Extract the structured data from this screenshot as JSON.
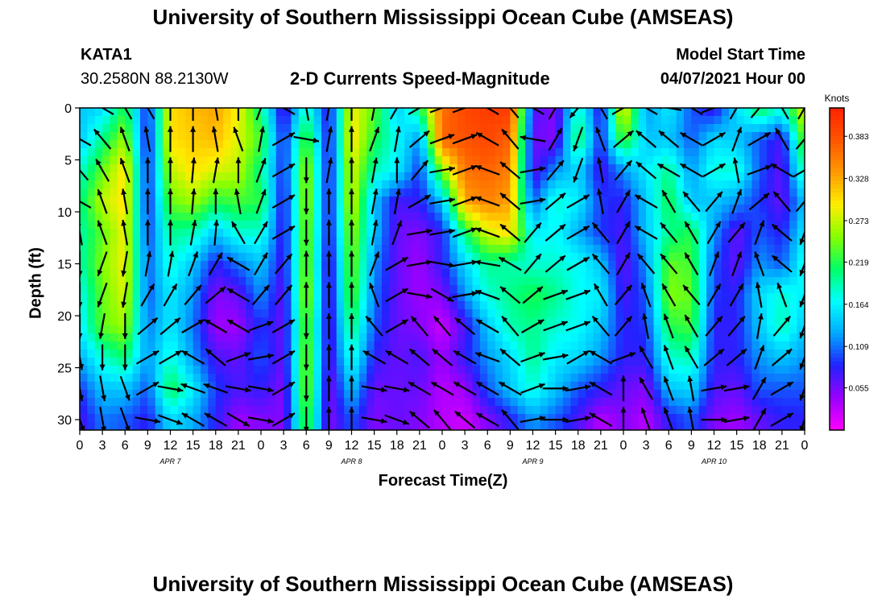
{
  "header": {
    "title_top": "University of Southern Mississippi Ocean Cube (AMSEAS)",
    "title_bottom": "University of Southern Mississippi Ocean Cube (AMSEAS)",
    "station": "KATA1",
    "coords": "30.2580N  88.2130W",
    "subtitle": "2-D Currents Speed-Magnitude",
    "model_label": "Model Start Time",
    "model_time": "04/07/2021 Hour 00"
  },
  "colors": {
    "scale": [
      "#ff00ff",
      "#9900ff",
      "#2222ff",
      "#00aaff",
      "#00ffff",
      "#00ff66",
      "#88ff00",
      "#ffee00",
      "#ff9900",
      "#ff5500",
      "#ff2200"
    ]
  },
  "chart_data": {
    "type": "heatmap",
    "xlabel": "Forecast Time(Z)",
    "ylabel": "Depth (ft)",
    "x_ticks": [
      "0",
      "3",
      "6",
      "9",
      "12",
      "15",
      "18",
      "21",
      "0",
      "3",
      "6",
      "9",
      "12",
      "15",
      "18",
      "21",
      "0",
      "3",
      "6",
      "9",
      "12",
      "15",
      "18",
      "21",
      "0",
      "3",
      "6",
      "9",
      "12",
      "15",
      "18",
      "21",
      "0"
    ],
    "date_labels": [
      {
        "text": "APR 7",
        "hour": 12
      },
      {
        "text": "APR 8",
        "hour": 36
      },
      {
        "text": "APR 9",
        "hour": 60
      },
      {
        "text": "APR 10",
        "hour": 84
      }
    ],
    "xlim": [
      0,
      96
    ],
    "y_ticks": [
      "0",
      "5",
      "10",
      "15",
      "20",
      "25",
      "30"
    ],
    "ylim": [
      0,
      31
    ],
    "colorbar": {
      "unit": "Knots",
      "ticks": [
        "0.383",
        "0.328",
        "0.273",
        "0.219",
        "0.164",
        "0.109",
        "0.055"
      ],
      "range": [
        0,
        0.42
      ]
    },
    "hours": [
      0,
      3,
      6,
      9,
      12,
      15,
      18,
      21,
      24,
      27,
      30,
      33,
      36,
      39,
      42,
      45,
      48,
      51,
      54,
      57,
      60,
      63,
      66,
      69,
      72,
      75,
      78,
      81,
      84,
      87,
      90,
      93,
      96
    ],
    "depths": [
      0,
      3,
      6,
      9,
      12,
      15,
      18,
      21,
      24,
      27,
      30
    ],
    "speed": [
      [
        0.14,
        0.15,
        0.22,
        0.08,
        0.3,
        0.32,
        0.33,
        0.29,
        0.2,
        0.06,
        0.19,
        0.07,
        0.29,
        0.24,
        0.14,
        0.21,
        0.36,
        0.39,
        0.4,
        0.4,
        0.07,
        0.05,
        0.19,
        0.07,
        0.3,
        0.12,
        0.16,
        0.1,
        0.07,
        0.15,
        0.22,
        0.18,
        0.29
      ],
      [
        0.14,
        0.2,
        0.26,
        0.07,
        0.3,
        0.31,
        0.32,
        0.28,
        0.23,
        0.08,
        0.24,
        0.07,
        0.3,
        0.22,
        0.17,
        0.12,
        0.37,
        0.38,
        0.39,
        0.37,
        0.06,
        0.05,
        0.22,
        0.08,
        0.24,
        0.14,
        0.14,
        0.1,
        0.15,
        0.14,
        0.1,
        0.07,
        0.25
      ],
      [
        0.18,
        0.24,
        0.3,
        0.08,
        0.27,
        0.3,
        0.28,
        0.27,
        0.2,
        0.08,
        0.27,
        0.07,
        0.28,
        0.19,
        0.16,
        0.09,
        0.25,
        0.36,
        0.37,
        0.35,
        0.06,
        0.12,
        0.15,
        0.07,
        0.12,
        0.16,
        0.2,
        0.12,
        0.18,
        0.18,
        0.1,
        0.06,
        0.2
      ],
      [
        0.2,
        0.27,
        0.3,
        0.08,
        0.24,
        0.26,
        0.22,
        0.23,
        0.22,
        0.07,
        0.27,
        0.07,
        0.28,
        0.14,
        0.07,
        0.08,
        0.14,
        0.33,
        0.35,
        0.33,
        0.1,
        0.18,
        0.16,
        0.09,
        0.08,
        0.14,
        0.22,
        0.14,
        0.14,
        0.12,
        0.09,
        0.06,
        0.14
      ],
      [
        0.19,
        0.24,
        0.29,
        0.09,
        0.2,
        0.19,
        0.14,
        0.18,
        0.18,
        0.07,
        0.26,
        0.07,
        0.26,
        0.14,
        0.06,
        0.05,
        0.08,
        0.21,
        0.28,
        0.3,
        0.16,
        0.17,
        0.13,
        0.09,
        0.07,
        0.14,
        0.2,
        0.22,
        0.12,
        0.06,
        0.1,
        0.08,
        0.16
      ],
      [
        0.19,
        0.25,
        0.29,
        0.1,
        0.18,
        0.14,
        0.08,
        0.11,
        0.14,
        0.07,
        0.26,
        0.06,
        0.25,
        0.12,
        0.06,
        0.04,
        0.08,
        0.15,
        0.2,
        0.19,
        0.18,
        0.18,
        0.17,
        0.14,
        0.06,
        0.12,
        0.24,
        0.23,
        0.1,
        0.06,
        0.12,
        0.1,
        0.18
      ],
      [
        0.17,
        0.24,
        0.28,
        0.1,
        0.16,
        0.12,
        0.05,
        0.06,
        0.12,
        0.06,
        0.27,
        0.06,
        0.24,
        0.11,
        0.06,
        0.04,
        0.05,
        0.12,
        0.18,
        0.2,
        0.22,
        0.2,
        0.17,
        0.16,
        0.07,
        0.1,
        0.25,
        0.24,
        0.09,
        0.08,
        0.15,
        0.18,
        0.16
      ],
      [
        0.16,
        0.24,
        0.26,
        0.11,
        0.16,
        0.11,
        0.04,
        0.04,
        0.09,
        0.06,
        0.25,
        0.06,
        0.21,
        0.1,
        0.06,
        0.05,
        0.02,
        0.07,
        0.14,
        0.19,
        0.2,
        0.18,
        0.17,
        0.14,
        0.08,
        0.09,
        0.22,
        0.23,
        0.08,
        0.08,
        0.14,
        0.19,
        0.14
      ],
      [
        0.13,
        0.18,
        0.21,
        0.12,
        0.18,
        0.12,
        0.07,
        0.06,
        0.1,
        0.06,
        0.26,
        0.06,
        0.18,
        0.08,
        0.06,
        0.07,
        0.04,
        0.08,
        0.12,
        0.15,
        0.2,
        0.16,
        0.15,
        0.12,
        0.08,
        0.08,
        0.18,
        0.19,
        0.08,
        0.08,
        0.12,
        0.14,
        0.12
      ],
      [
        0.09,
        0.14,
        0.14,
        0.1,
        0.22,
        0.16,
        0.09,
        0.07,
        0.08,
        0.05,
        0.26,
        0.05,
        0.14,
        0.06,
        0.06,
        0.06,
        0.03,
        0.04,
        0.1,
        0.14,
        0.18,
        0.14,
        0.1,
        0.08,
        0.06,
        0.05,
        0.14,
        0.15,
        0.07,
        0.06,
        0.1,
        0.1,
        0.1
      ],
      [
        0.07,
        0.11,
        0.1,
        0.08,
        0.15,
        0.13,
        0.08,
        0.04,
        0.05,
        0.05,
        0.24,
        0.05,
        0.1,
        0.05,
        0.06,
        0.05,
        0.03,
        0.02,
        0.05,
        0.08,
        0.12,
        0.1,
        0.07,
        0.03,
        0.05,
        0.03,
        0.08,
        0.1,
        0.05,
        0.04,
        0.06,
        0.08,
        0.08
      ]
    ],
    "direction_deg": [
      [
        30,
        300,
        330,
        330,
        0,
        0,
        350,
        0,
        20,
        300,
        350,
        10,
        0,
        10,
        30,
        60,
        70,
        70,
        300,
        320,
        300,
        30,
        220,
        330,
        60,
        300,
        280,
        300,
        70,
        30,
        40,
        330,
        30
      ],
      [
        300,
        320,
        340,
        350,
        0,
        0,
        350,
        340,
        10,
        60,
        100,
        10,
        0,
        20,
        10,
        50,
        70,
        70,
        300,
        320,
        280,
        30,
        200,
        340,
        50,
        310,
        310,
        300,
        60,
        20,
        60,
        330,
        40
      ],
      [
        320,
        330,
        340,
        0,
        0,
        5,
        10,
        0,
        20,
        60,
        180,
        10,
        0,
        10,
        0,
        40,
        80,
        70,
        290,
        310,
        80,
        40,
        200,
        350,
        40,
        310,
        300,
        300,
        60,
        350,
        70,
        300,
        60
      ],
      [
        300,
        340,
        350,
        0,
        0,
        5,
        0,
        350,
        20,
        60,
        180,
        0,
        0,
        10,
        10,
        60,
        80,
        70,
        290,
        310,
        80,
        50,
        60,
        350,
        30,
        300,
        330,
        320,
        40,
        20,
        50,
        320,
        40
      ],
      [
        350,
        340,
        350,
        0,
        0,
        10,
        5,
        330,
        30,
        60,
        180,
        0,
        0,
        10,
        20,
        80,
        80,
        70,
        290,
        310,
        40,
        50,
        60,
        320,
        30,
        300,
        320,
        330,
        30,
        40,
        20,
        310,
        200
      ],
      [
        180,
        200,
        190,
        10,
        10,
        20,
        30,
        300,
        30,
        40,
        0,
        0,
        0,
        20,
        60,
        80,
        100,
        80,
        280,
        300,
        40,
        50,
        60,
        320,
        30,
        320,
        320,
        330,
        20,
        20,
        340,
        310,
        200
      ],
      [
        180,
        200,
        190,
        30,
        30,
        40,
        50,
        300,
        40,
        40,
        0,
        0,
        0,
        340,
        60,
        100,
        120,
        80,
        290,
        310,
        50,
        70,
        70,
        330,
        40,
        340,
        330,
        320,
        30,
        30,
        350,
        340,
        200
      ],
      [
        180,
        190,
        180,
        50,
        50,
        60,
        300,
        300,
        70,
        60,
        180,
        0,
        0,
        320,
        60,
        320,
        320,
        310,
        300,
        320,
        60,
        70,
        70,
        320,
        40,
        350,
        340,
        330,
        40,
        40,
        10,
        40,
        200
      ],
      [
        170,
        180,
        180,
        60,
        60,
        300,
        310,
        70,
        80,
        60,
        180,
        0,
        0,
        300,
        300,
        310,
        310,
        300,
        290,
        310,
        70,
        80,
        60,
        300,
        70,
        330,
        340,
        330,
        50,
        50,
        20,
        50,
        200
      ],
      [
        170,
        170,
        160,
        60,
        100,
        290,
        290,
        100,
        100,
        60,
        180,
        0,
        0,
        100,
        100,
        300,
        300,
        300,
        300,
        300,
        70,
        90,
        80,
        300,
        0,
        330,
        340,
        350,
        80,
        80,
        30,
        60,
        200
      ],
      [
        160,
        170,
        160,
        100,
        110,
        300,
        300,
        120,
        100,
        60,
        180,
        0,
        0,
        100,
        110,
        310,
        320,
        310,
        300,
        320,
        80,
        90,
        80,
        300,
        0,
        340,
        340,
        350,
        90,
        80,
        30,
        60,
        200
      ]
    ]
  }
}
